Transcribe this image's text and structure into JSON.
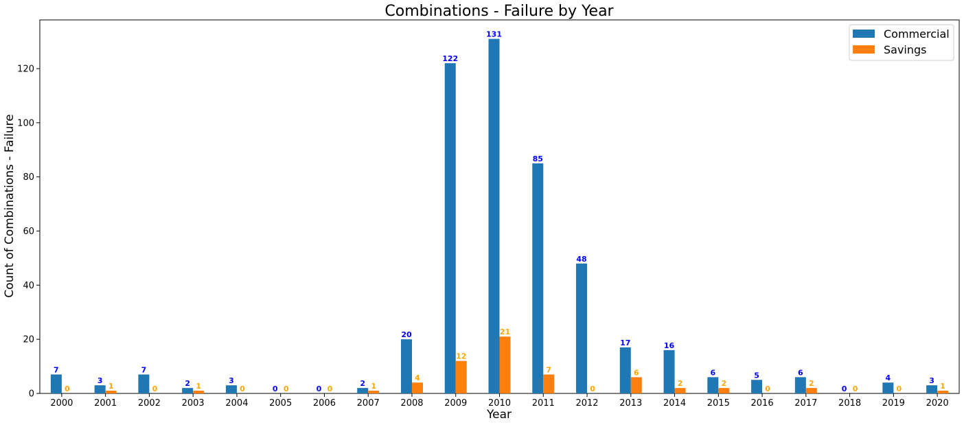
{
  "chart_data": {
    "type": "bar",
    "title": "Combinations - Failure by Year",
    "xlabel": "Year",
    "ylabel": "Count of Combinations - Failure",
    "categories": [
      "2000",
      "2001",
      "2002",
      "2003",
      "2004",
      "2005",
      "2006",
      "2007",
      "2008",
      "2009",
      "2010",
      "2011",
      "2012",
      "2013",
      "2014",
      "2015",
      "2016",
      "2017",
      "2018",
      "2019",
      "2020"
    ],
    "series": [
      {
        "name": "Commercial",
        "color": "#1f77b4",
        "label_color": "#0000ff",
        "values": [
          7,
          3,
          7,
          2,
          3,
          0,
          0,
          2,
          20,
          122,
          131,
          85,
          48,
          17,
          16,
          6,
          5,
          6,
          0,
          4,
          3
        ]
      },
      {
        "name": "Savings",
        "color": "#ff7f0e",
        "label_color": "#ffa500",
        "values": [
          0,
          1,
          0,
          1,
          0,
          0,
          0,
          1,
          4,
          12,
          21,
          7,
          0,
          6,
          2,
          2,
          0,
          2,
          0,
          0,
          1
        ]
      }
    ],
    "ylim": [
      0,
      138
    ],
    "yticks": [
      0,
      20,
      40,
      60,
      80,
      100,
      120
    ],
    "grid": false,
    "legend_position": "top-right"
  }
}
